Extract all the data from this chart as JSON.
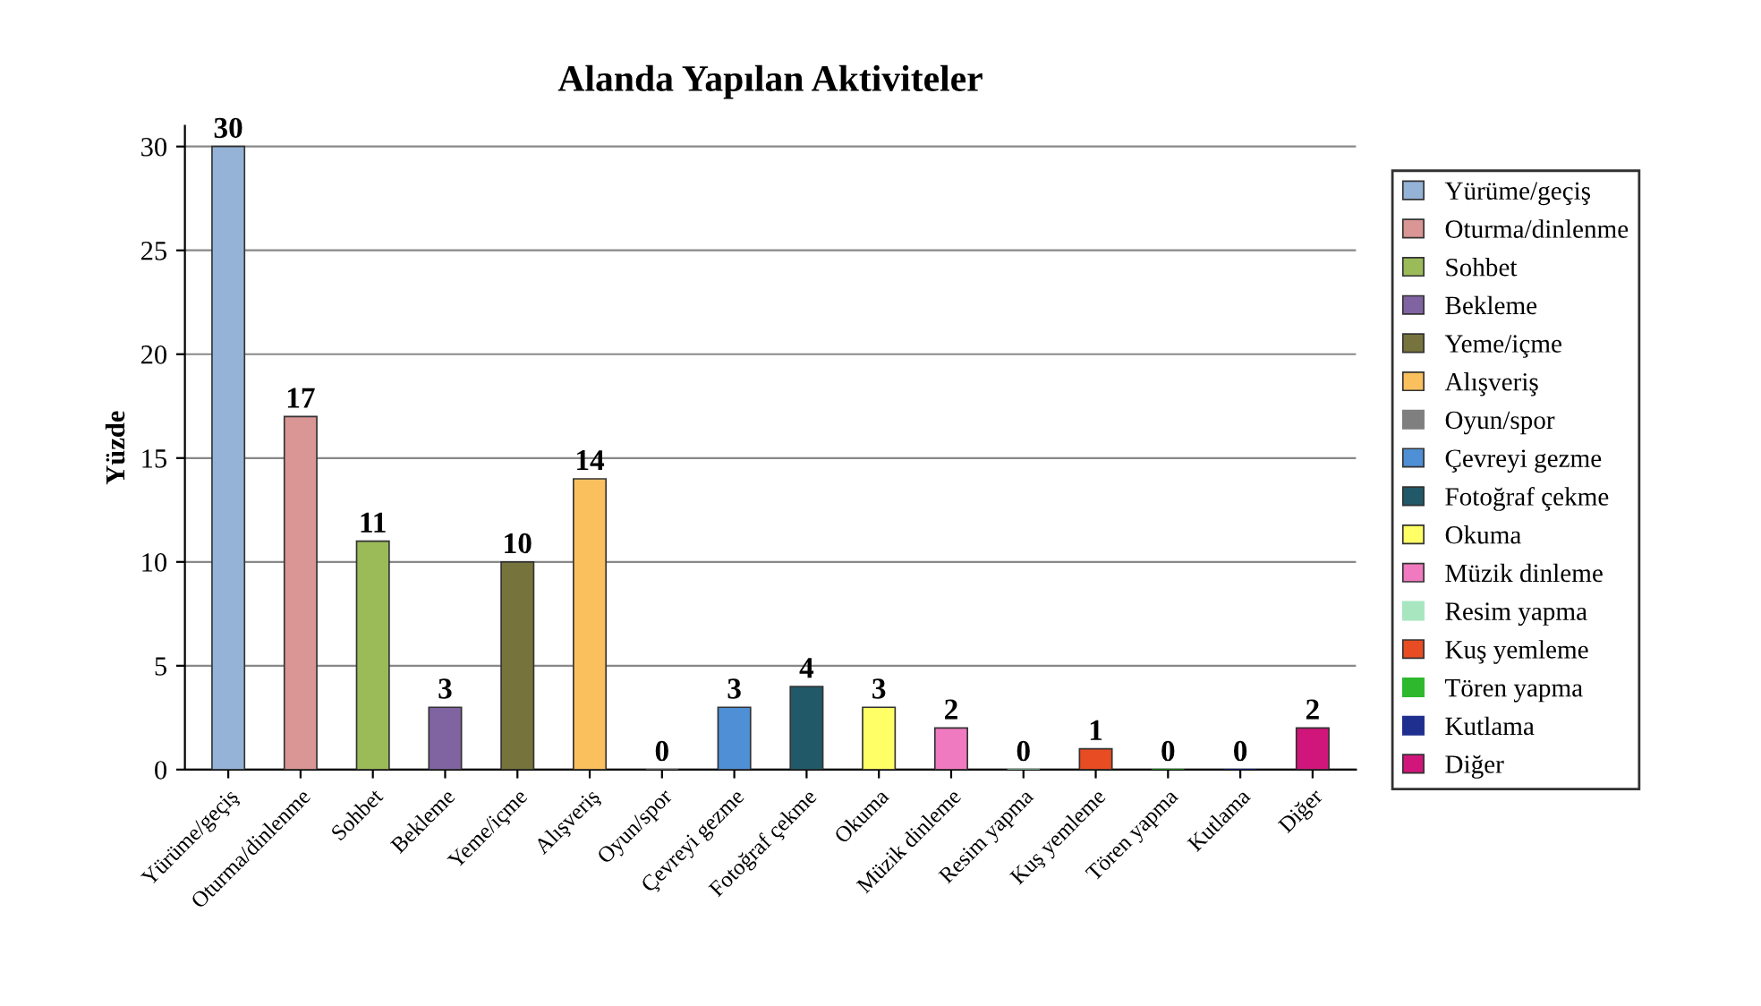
{
  "chart_data": {
    "type": "bar",
    "title": "Alanda Yapılan Aktiviteler",
    "ylabel": "Yüzde",
    "categories": [
      "Yürüme/geçiş",
      "Oturma/dinlenme",
      "Sohbet",
      "Bekleme",
      "Yeme/içme",
      "Alışveriş",
      "Oyun/spor",
      "Çevreyi gezme",
      "Fotoğraf çekme",
      "Okuma",
      "Müzik dinleme",
      "Resim yapma",
      "Kuş yemleme",
      "Tören yapma",
      "Kutlama",
      "Diğer"
    ],
    "series": [
      {
        "name": "Yürüme/geçiş",
        "color": "#95b3d7",
        "values": [
          30,
          null,
          null,
          null,
          null,
          null,
          null,
          null,
          null,
          null,
          null,
          null,
          null,
          null,
          null,
          null
        ]
      },
      {
        "name": "Oturma/dinlenme",
        "color": "#d99694",
        "values": [
          null,
          17,
          null,
          null,
          null,
          null,
          null,
          null,
          null,
          null,
          null,
          null,
          null,
          null,
          null,
          null
        ]
      },
      {
        "name": "Sohbet",
        "color": "#9bbb59",
        "values": [
          null,
          null,
          11,
          null,
          null,
          null,
          null,
          null,
          null,
          null,
          null,
          null,
          null,
          null,
          null,
          null
        ]
      },
      {
        "name": "Bekleme",
        "color": "#8064a2",
        "values": [
          null,
          null,
          null,
          3,
          null,
          null,
          null,
          null,
          null,
          null,
          null,
          null,
          null,
          null,
          null,
          null
        ]
      },
      {
        "name": "Yeme/içme",
        "color": "#77733c",
        "values": [
          null,
          null,
          null,
          null,
          10,
          null,
          null,
          null,
          null,
          null,
          null,
          null,
          null,
          null,
          null,
          null
        ]
      },
      {
        "name": "Alışveriş",
        "color": "#fac05e",
        "values": [
          null,
          null,
          null,
          null,
          null,
          14,
          null,
          null,
          null,
          null,
          null,
          null,
          null,
          null,
          null,
          null
        ]
      },
      {
        "name": "Oyun/spor",
        "color": "#7f7f7f",
        "values": [
          null,
          null,
          null,
          null,
          null,
          null,
          0,
          null,
          null,
          null,
          null,
          null,
          null,
          null,
          null,
          null
        ]
      },
      {
        "name": "Çevreyi gezme",
        "color": "#4f8fd6",
        "values": [
          null,
          null,
          null,
          null,
          null,
          null,
          null,
          3,
          null,
          null,
          null,
          null,
          null,
          null,
          null,
          null
        ]
      },
      {
        "name": "Fotoğraf çekme",
        "color": "#215968",
        "values": [
          null,
          null,
          null,
          null,
          null,
          null,
          null,
          null,
          4,
          null,
          null,
          null,
          null,
          null,
          null,
          null
        ]
      },
      {
        "name": "Okuma",
        "color": "#ffff66",
        "values": [
          null,
          null,
          null,
          null,
          null,
          null,
          null,
          null,
          null,
          3,
          null,
          null,
          null,
          null,
          null,
          null
        ]
      },
      {
        "name": "Müzik dinleme",
        "color": "#f07ac0",
        "values": [
          null,
          null,
          null,
          null,
          null,
          null,
          null,
          null,
          null,
          null,
          2,
          null,
          null,
          null,
          null,
          null
        ]
      },
      {
        "name": "Resim yapma",
        "color": "#a8e6c0",
        "values": [
          null,
          null,
          null,
          null,
          null,
          null,
          null,
          null,
          null,
          null,
          null,
          0,
          null,
          null,
          null,
          null
        ]
      },
      {
        "name": "Kuş yemleme",
        "color": "#e84c22",
        "values": [
          null,
          null,
          null,
          null,
          null,
          null,
          null,
          null,
          null,
          null,
          null,
          null,
          1,
          null,
          null,
          null
        ]
      },
      {
        "name": "Tören yapma",
        "color": "#2eb82e",
        "values": [
          null,
          null,
          null,
          null,
          null,
          null,
          null,
          null,
          null,
          null,
          null,
          null,
          null,
          0,
          null,
          null
        ]
      },
      {
        "name": "Kutlama",
        "color": "#1f2f8f",
        "values": [
          null,
          null,
          null,
          null,
          null,
          null,
          null,
          null,
          null,
          null,
          null,
          null,
          null,
          null,
          0,
          null
        ]
      },
      {
        "name": "Diğer",
        "color": "#d0167a",
        "values": [
          null,
          null,
          null,
          null,
          null,
          null,
          null,
          null,
          null,
          null,
          null,
          null,
          null,
          null,
          null,
          2
        ]
      }
    ],
    "ylim": [
      0,
      31
    ],
    "yticks": [
      0,
      5,
      10,
      15,
      20,
      25,
      30
    ],
    "grid": "y",
    "legend": "right",
    "data_labels": true
  }
}
